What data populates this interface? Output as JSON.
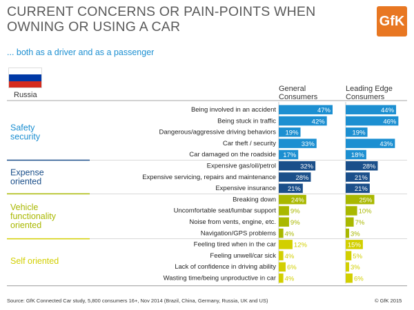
{
  "header": {
    "title": "CURRENT CONCERNS OR PAIN-POINTS WHEN OWNING OR USING A CAR",
    "subtitle": "... both as a driver and as a passenger",
    "logo": "GfK",
    "country": "Russia"
  },
  "colors": {
    "safety": "#1c8fd1",
    "expense": "#1b4f8a",
    "vehicle": "#a9b800",
    "self": "#d2cf00",
    "logo": "#e87722"
  },
  "chart_data": {
    "type": "bar",
    "title": "Current concerns or pain-points when owning or using a car",
    "series": [
      {
        "name": "General Consumers",
        "values": [
          47,
          42,
          19,
          33,
          17,
          32,
          28,
          21,
          24,
          9,
          9,
          4,
          12,
          4,
          6,
          4
        ]
      },
      {
        "name": "Leading Edge Consumers",
        "values": [
          44,
          46,
          19,
          43,
          18,
          28,
          21,
          21,
          25,
          10,
          7,
          3,
          15,
          5,
          3,
          6
        ]
      }
    ],
    "categories": [
      "Being involved in an accident",
      "Being stuck in traffic",
      "Dangerous/aggressive driving behaviors",
      "Car theft / security",
      "Car damaged on the roadside",
      "Expensive gas/oil/petrol",
      "Expensive servicing, repairs and maintenance",
      "Expensive insurance",
      "Breaking down",
      "Uncomfortable seat/lumbar support",
      "Noise from vents, engine, etc.",
      "Navigation/GPS problems",
      "Feeling tired when in the car",
      "Feeling unwell/car sick",
      "Lack of confidence in driving ability",
      "Wasting time/being unproductive in car"
    ],
    "category_group": [
      0,
      0,
      0,
      0,
      0,
      1,
      1,
      1,
      2,
      2,
      2,
      2,
      3,
      3,
      3,
      3
    ],
    "groups": [
      {
        "label": "Safety security",
        "color_key": "safety"
      },
      {
        "label": "Expense oriented",
        "color_key": "expense"
      },
      {
        "label": "Vehicle functionality oriented",
        "color_key": "vehicle"
      },
      {
        "label": "Self oriented",
        "color_key": "self"
      }
    ],
    "value_suffix": "%",
    "xlim": [
      0,
      47
    ]
  },
  "column_headers": {
    "general": "General Consumers",
    "leading": "Leading Edge Consumers"
  },
  "footer": {
    "source": "Source: GfK Connected Car study, 5,800 consumers 16+, Nov 2014 (Brazil, China, Germany, Russia, UK and US)",
    "copyright": "© GfK 2015"
  }
}
